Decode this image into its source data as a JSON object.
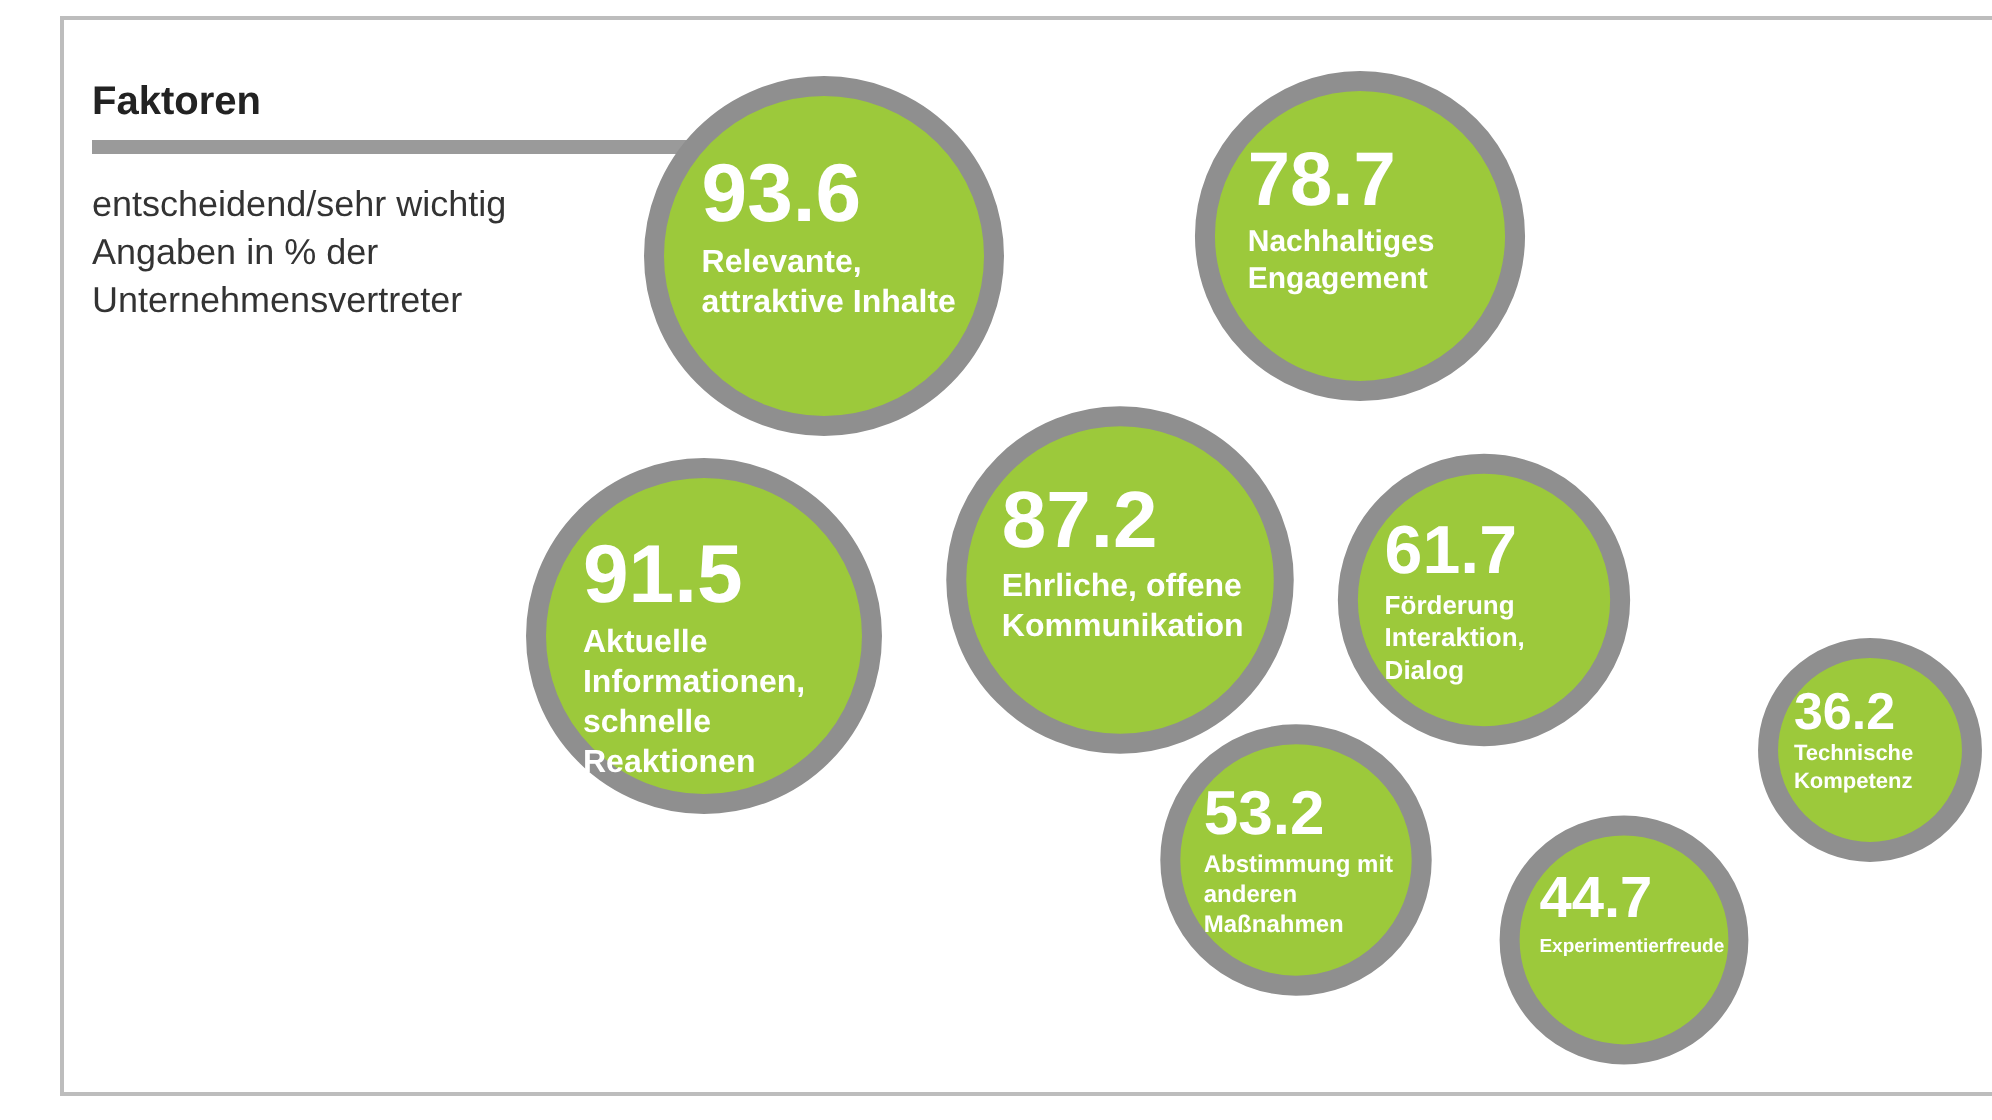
{
  "chart_data": {
    "type": "other",
    "title": "Faktoren",
    "subtitle": "entscheidend/sehr wichtig Angaben in % der Unternehmensvertreter",
    "categories": [
      "Relevante, attraktive Inhalte",
      "Nachhaltiges Engagement",
      "Aktuelle Informationen, schnelle Reaktionen",
      "Ehrliche, offene Kommunikation",
      "Förderung Interaktion, Dialog",
      "Abstimmung mit anderen Maßnahmen",
      "Experimentierfreude",
      "Technische Kompetenz"
    ],
    "values": [
      93.6,
      78.7,
      91.5,
      87.2,
      61.7,
      53.2,
      44.7,
      36.2
    ],
    "color": "#9cc93b",
    "data_labels": true
  }
}
